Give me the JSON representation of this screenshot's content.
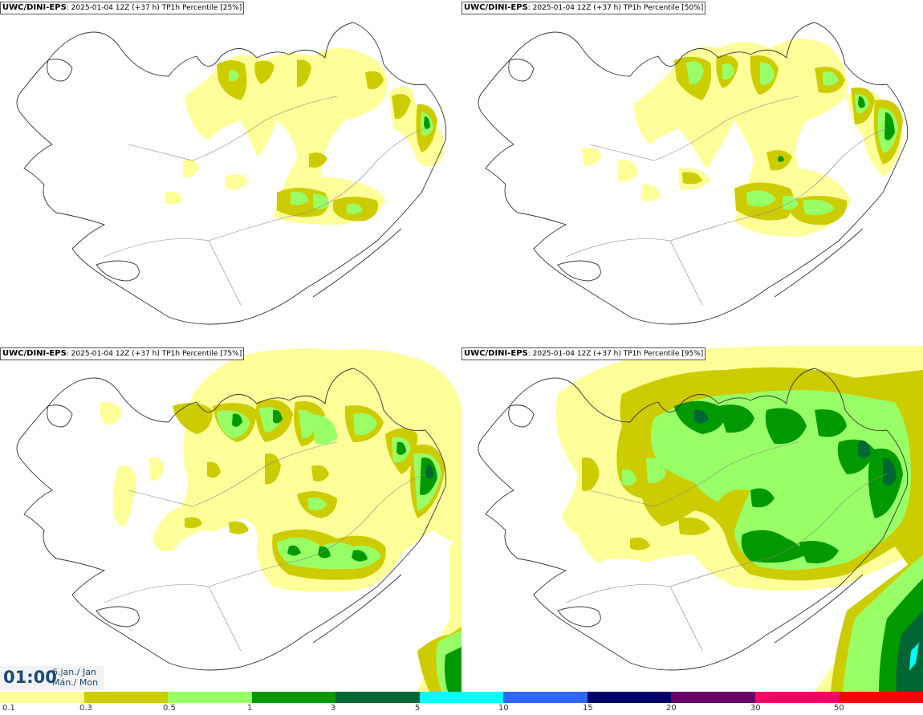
{
  "panels": [
    {
      "model": "UWC/DINI-EPS",
      "run_info": ": 2025-01-04 12Z (+37 h) TP1h Percentile [25%]"
    },
    {
      "model": "UWC/DINI-EPS",
      "run_info": ": 2025-01-04 12Z (+37 h) TP1h Percentile [50%]"
    },
    {
      "model": "UWC/DINI-EPS",
      "run_info": ": 2025-01-04 12Z (+37 h) TP1h Percentile [75%]"
    },
    {
      "model": "UWC/DINI-EPS",
      "run_info": ": 2025-01-04 12Z (+37 h) TP1h Percentile [95%]"
    }
  ],
  "valid_time": {
    "time": "01:00",
    "date_line1": "6.jan./ Jan",
    "date_line2": "Mán./ Mon"
  },
  "legend": {
    "labels": [
      "0.1",
      "0.3",
      "0.5",
      "1",
      "3",
      "5",
      "10",
      "15",
      "20",
      "30",
      "50"
    ],
    "colors": [
      "#ffff99",
      "#cccc00",
      "#99ff66",
      "#009900",
      "#006633",
      "#00ffff",
      "#3366ff",
      "#000066",
      "#660066",
      "#ff0066",
      "#ff0000"
    ]
  },
  "map_colors": {
    "c01": "#ffff99",
    "c03": "#cccc00",
    "c05": "#99ff66",
    "c1": "#009900",
    "c3": "#006633",
    "c5": "#00ffff",
    "coast": "#333333"
  }
}
